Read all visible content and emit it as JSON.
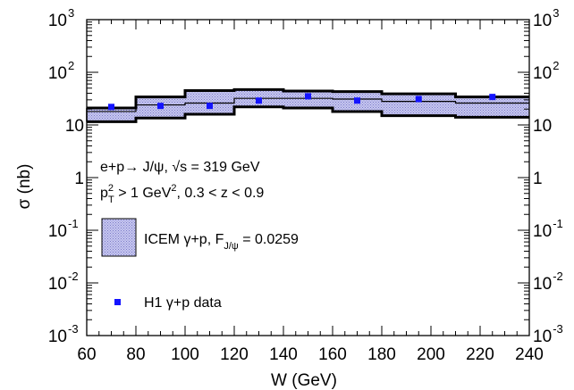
{
  "chart_data": {
    "type": "scatter",
    "xlabel": "W (GeV)",
    "ylabel": "σ (nb)",
    "xlim": [
      60,
      240
    ],
    "ylim_log10": [
      -3,
      3
    ],
    "log_y": true,
    "x_ticks": [
      "60",
      "80",
      "100",
      "120",
      "140",
      "160",
      "180",
      "200",
      "220",
      "240"
    ],
    "y_ticks": [
      {
        "base": "10",
        "exp": "-3"
      },
      {
        "base": "10",
        "exp": "-2"
      },
      {
        "base": "10",
        "exp": "-1"
      },
      {
        "base": "1",
        "exp": ""
      },
      {
        "base": "10",
        "exp": ""
      },
      {
        "base": "10",
        "exp": "2"
      },
      {
        "base": "10",
        "exp": "3"
      }
    ],
    "band": {
      "bins": [
        {
          "lo": 60,
          "hi": 80,
          "low": 11.5,
          "mid": 18,
          "high": 21
        },
        {
          "lo": 80,
          "hi": 100,
          "low": 13.5,
          "mid": 24,
          "high": 34
        },
        {
          "lo": 100,
          "hi": 120,
          "low": 16,
          "mid": 26,
          "high": 45
        },
        {
          "lo": 120,
          "hi": 140,
          "low": 22,
          "mid": 32,
          "high": 47
        },
        {
          "lo": 140,
          "hi": 160,
          "low": 21,
          "mid": 32,
          "high": 44
        },
        {
          "lo": 160,
          "hi": 180,
          "low": 18,
          "mid": 31,
          "high": 43
        },
        {
          "lo": 180,
          "hi": 210,
          "low": 15,
          "mid": 28,
          "high": 39
        },
        {
          "lo": 210,
          "hi": 240,
          "low": 14,
          "mid": 26,
          "high": 34
        }
      ]
    },
    "points": {
      "name": "H1 γ+p data",
      "x": [
        70,
        90,
        110,
        130,
        150,
        170,
        195,
        225
      ],
      "y": [
        22,
        23,
        23,
        29,
        35,
        29,
        31,
        34
      ],
      "err": [
        2,
        2,
        2,
        2.5,
        3,
        2.5,
        3,
        4
      ]
    },
    "annotations": {
      "process": "e+p→ J/ψ,  √s = 319 GeV",
      "cuts": "p_T^2 > 1 GeV^2, 0.3 < z < 0.9"
    },
    "legend": [
      {
        "kind": "band",
        "label": "ICEM γ+p, F_J/ψ = 0.0259"
      },
      {
        "kind": "marker",
        "label": "H1 γ+p data"
      }
    ],
    "colors": {
      "band_fill": "#c8c8f0",
      "band_hatch": "#7a7ac8",
      "marker": "#1414ff",
      "frame": "#000000"
    }
  }
}
